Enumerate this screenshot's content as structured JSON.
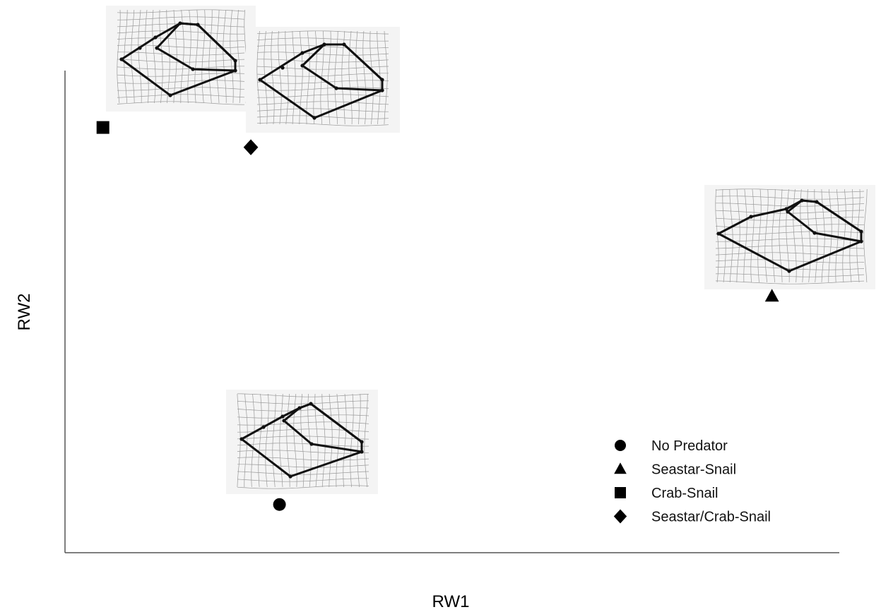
{
  "chart_data": {
    "type": "scatter",
    "title": "",
    "xlabel": "RW1",
    "ylabel": "RW2",
    "xlim": [
      0,
      100
    ],
    "ylim": [
      0,
      100
    ],
    "grid": false,
    "legend_placement": "bottom-right",
    "series": [
      {
        "name": "No Predator",
        "marker": "circle",
        "x": 27.7,
        "y": 10.0
      },
      {
        "name": "Seastar-Snail",
        "marker": "triangle",
        "x": 91.3,
        "y": 53.2
      },
      {
        "name": "Crab-Snail",
        "marker": "square",
        "x": 4.9,
        "y": 88.2
      },
      {
        "name": "Seastar/Crab-Snail",
        "marker": "diamond",
        "x": 24.0,
        "y": 84.1
      }
    ],
    "annotations": "deformation-grid thumbnails of shell shape shown beside each group"
  },
  "colors": {
    "marker": "#000000",
    "axis": "#555555",
    "grid_line": "#9a9a9a",
    "thumb_bg": "#f4f4f4"
  }
}
